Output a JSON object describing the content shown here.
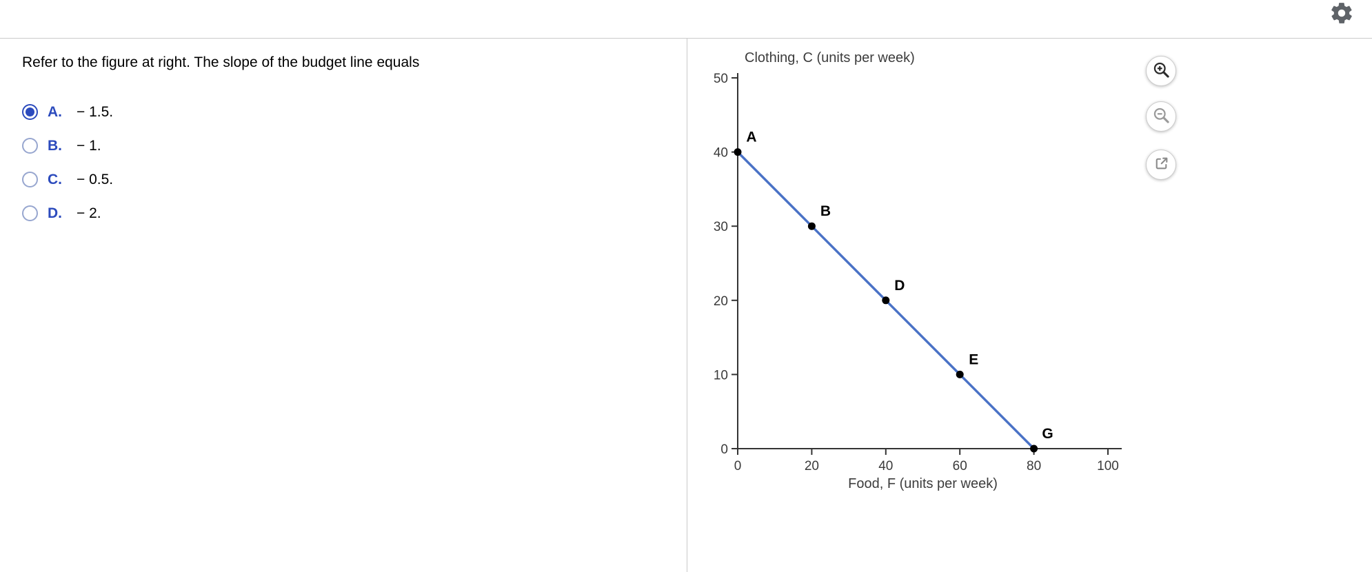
{
  "topbar": {
    "gear_icon": "settings-gear"
  },
  "question": {
    "prompt": "Refer to the figure at right. The slope of the budget line equals",
    "options": [
      {
        "letter": "A.",
        "text": "− 1.5.",
        "selected": true
      },
      {
        "letter": "B.",
        "text": "− 1.",
        "selected": false
      },
      {
        "letter": "C.",
        "text": "− 0.5.",
        "selected": false
      },
      {
        "letter": "D.",
        "text": "− 2.",
        "selected": false
      }
    ]
  },
  "figure_toolbar": {
    "buttons": [
      {
        "name": "zoom-in",
        "glyph": "magnifier-plus"
      },
      {
        "name": "zoom-out",
        "glyph": "magnifier-minus"
      },
      {
        "name": "enlarge",
        "glyph": "external-link"
      }
    ]
  },
  "chart_data": {
    "type": "line",
    "title": "",
    "ylabel": "Clothing, C (units per week)",
    "xlabel": "Food, F (units per week)",
    "xlim": [
      0,
      100
    ],
    "ylim": [
      0,
      50
    ],
    "x_ticks": [
      0,
      20,
      40,
      60,
      80,
      100
    ],
    "y_ticks": [
      0,
      10,
      20,
      30,
      40,
      50
    ],
    "grid": false,
    "legend": "none",
    "line_color": "#4a72c6",
    "point_color": "#000000",
    "series": [
      {
        "name": "budget-line",
        "points": [
          {
            "x": 0,
            "y": 40,
            "label": "A"
          },
          {
            "x": 20,
            "y": 30,
            "label": "B"
          },
          {
            "x": 40,
            "y": 20,
            "label": "D"
          },
          {
            "x": 60,
            "y": 10,
            "label": "E"
          },
          {
            "x": 80,
            "y": 0,
            "label": "G"
          }
        ]
      }
    ]
  }
}
